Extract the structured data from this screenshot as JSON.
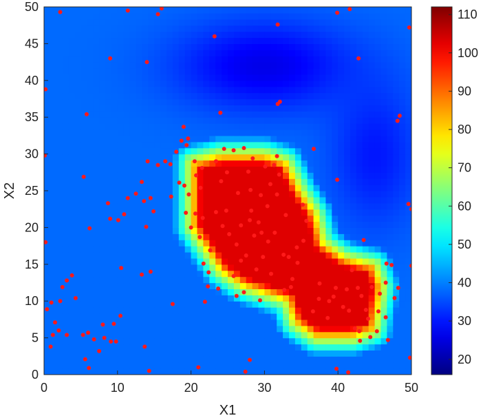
{
  "chart_data": {
    "type": "heatmap",
    "title": "",
    "xlabel": "X1",
    "ylabel": "X2",
    "xlim": [
      0,
      50
    ],
    "ylim": [
      0,
      50
    ],
    "xticks": [
      0,
      10,
      20,
      30,
      40,
      50
    ],
    "yticks": [
      0,
      5,
      10,
      15,
      20,
      25,
      30,
      35,
      40,
      45,
      50
    ],
    "colorbar": {
      "colormap": "jet",
      "range": [
        16,
        112
      ],
      "ticks": [
        20,
        30,
        40,
        50,
        60,
        70,
        80,
        90,
        100,
        110
      ]
    },
    "background_level": 38,
    "hot_regions": [
      {
        "polygon": [
          [
            20,
            29
          ],
          [
            24,
            30
          ],
          [
            30,
            30
          ],
          [
            33,
            29
          ],
          [
            35,
            25
          ],
          [
            37,
            22
          ],
          [
            38,
            18
          ],
          [
            41,
            16
          ],
          [
            45,
            15
          ],
          [
            46,
            12
          ],
          [
            45,
            6
          ],
          [
            42,
            5
          ],
          [
            37,
            5
          ],
          [
            34,
            7
          ],
          [
            33,
            10
          ],
          [
            30,
            11
          ],
          [
            27,
            12
          ],
          [
            24,
            14
          ],
          [
            22,
            17
          ],
          [
            20,
            20
          ]
        ],
        "level": 103
      }
    ],
    "cool_regions": [
      {
        "center": [
          30,
          42
        ],
        "radius": [
          12,
          6
        ],
        "level": 26
      },
      {
        "center": [
          45,
          30
        ],
        "radius": [
          6,
          10
        ],
        "level": 30
      }
    ],
    "point_color": "#ff1a1a",
    "points": [
      [
        0.2,
        38.8
      ],
      [
        0.1,
        29.8
      ],
      [
        0.2,
        18
      ],
      [
        2.2,
        49.3
      ],
      [
        9,
        43
      ],
      [
        11.4,
        49.5
      ],
      [
        15.5,
        49
      ],
      [
        16,
        49.8
      ],
      [
        14,
        42.5
      ],
      [
        5.8,
        35.4
      ],
      [
        23.2,
        46
      ],
      [
        31.8,
        47.6
      ],
      [
        24,
        35.6
      ],
      [
        39.9,
        49.2
      ],
      [
        41.6,
        49.7
      ],
      [
        42.8,
        43
      ],
      [
        49.7,
        47.2
      ],
      [
        48.4,
        35.2
      ],
      [
        48.1,
        34.5
      ],
      [
        49.6,
        23.2
      ],
      [
        50,
        22.5
      ],
      [
        39.9,
        26.5
      ],
      [
        50,
        14.8
      ],
      [
        49.8,
        2.3
      ],
      [
        39.8,
        0.8
      ],
      [
        41.4,
        0.3
      ],
      [
        28,
        2
      ],
      [
        27.4,
        0.4
      ],
      [
        21,
        1
      ],
      [
        14.3,
        0.5
      ],
      [
        6.1,
        0.9
      ],
      [
        13.7,
        3.8
      ],
      [
        5.4,
        26.9
      ],
      [
        6.2,
        19.9
      ],
      [
        8.7,
        23.3
      ],
      [
        9,
        21.2
      ],
      [
        10.1,
        21
      ],
      [
        10.9,
        21.8
      ],
      [
        10.5,
        14.5
      ],
      [
        11.4,
        24
      ],
      [
        12.5,
        24.6
      ],
      [
        13.3,
        26.2
      ],
      [
        13.6,
        23.6
      ],
      [
        14.1,
        29
      ],
      [
        14.5,
        24
      ],
      [
        15.5,
        28.5
      ],
      [
        16.5,
        29
      ],
      [
        17.2,
        28.6
      ],
      [
        17.3,
        24.2
      ],
      [
        18,
        30.3
      ],
      [
        18.7,
        31.8
      ],
      [
        19.4,
        31.2
      ],
      [
        19.6,
        32.1
      ],
      [
        19.1,
        25.7
      ],
      [
        19.7,
        24.5
      ],
      [
        19.3,
        22
      ],
      [
        20,
        20
      ],
      [
        18.4,
        26.1
      ],
      [
        19,
        33.7
      ],
      [
        14.9,
        22.2
      ],
      [
        13.9,
        20.1
      ],
      [
        13.3,
        13.6
      ],
      [
        14.5,
        14
      ],
      [
        17.5,
        9.6
      ],
      [
        0.4,
        8.9
      ],
      [
        1,
        9.8
      ],
      [
        1.5,
        7.1
      ],
      [
        1.2,
        5.4
      ],
      [
        0.9,
        3.8
      ],
      [
        2,
        6
      ],
      [
        2.2,
        10
      ],
      [
        2.5,
        11.9
      ],
      [
        3.1,
        12.8
      ],
      [
        4.3,
        10.4
      ],
      [
        3.8,
        13.5
      ],
      [
        3.1,
        5.4
      ],
      [
        5.3,
        5.4
      ],
      [
        5.6,
        2.1
      ],
      [
        6,
        5.7
      ],
      [
        6.8,
        4.8
      ],
      [
        7.5,
        3.2
      ],
      [
        8,
        6.8
      ],
      [
        9.1,
        4.5
      ],
      [
        9.8,
        4.5
      ],
      [
        9.5,
        6.9
      ],
      [
        10.4,
        8
      ],
      [
        8.2,
        5
      ],
      [
        20.5,
        29
      ],
      [
        20.7,
        27.1
      ],
      [
        21.5,
        28.1
      ],
      [
        21.3,
        25.4
      ],
      [
        20.6,
        21.9
      ],
      [
        21.6,
        21.3
      ],
      [
        21.2,
        18.7
      ],
      [
        21.7,
        15.1
      ],
      [
        22.6,
        16.9
      ],
      [
        22.4,
        13.9
      ],
      [
        22.3,
        12
      ],
      [
        21.9,
        9.9
      ],
      [
        23.7,
        11.7
      ],
      [
        23.4,
        29
      ],
      [
        24.1,
        26.3
      ],
      [
        24.5,
        30.7
      ],
      [
        25.8,
        30.5
      ],
      [
        24.8,
        22.3
      ],
      [
        26.4,
        24.7
      ],
      [
        26.2,
        17.7
      ],
      [
        26.8,
        15.5
      ],
      [
        25.8,
        13.4
      ],
      [
        26.2,
        10.7
      ],
      [
        27.2,
        30.8
      ],
      [
        28.4,
        29.4
      ],
      [
        27.8,
        27.6
      ],
      [
        28.1,
        25.1
      ],
      [
        28,
        21
      ],
      [
        28.6,
        18.9
      ],
      [
        27.5,
        16.2
      ],
      [
        28.9,
        14.3
      ],
      [
        27.2,
        11.2
      ],
      [
        30.1,
        28.3
      ],
      [
        29.5,
        24.4
      ],
      [
        30.4,
        22.9
      ],
      [
        29.2,
        20.7
      ],
      [
        30.5,
        18.1
      ],
      [
        29.8,
        16
      ],
      [
        30.9,
        13.7
      ],
      [
        29.4,
        10.1
      ],
      [
        31.7,
        29.7
      ],
      [
        32,
        27.2
      ],
      [
        31.7,
        24.5
      ],
      [
        32.9,
        21.7
      ],
      [
        31.4,
        19.3
      ],
      [
        32.6,
        16.3
      ],
      [
        33.8,
        13
      ],
      [
        32.7,
        11.5
      ],
      [
        25.2,
        19.1
      ],
      [
        26.8,
        20.3
      ],
      [
        23.4,
        22.1
      ],
      [
        24.3,
        20.2
      ],
      [
        28.2,
        22.3
      ],
      [
        29.6,
        19.3
      ],
      [
        24.9,
        27.5
      ],
      [
        30.8,
        25.9
      ],
      [
        31.8,
        36.8
      ],
      [
        32.1,
        37.1
      ],
      [
        31.3,
        28.5
      ],
      [
        35.2,
        23.1
      ],
      [
        35.7,
        20.9
      ],
      [
        35.3,
        18.2
      ],
      [
        34.4,
        17.3
      ],
      [
        33.3,
        16
      ],
      [
        33.6,
        11.9
      ],
      [
        36.7,
        30.7
      ],
      [
        37.4,
        10.3
      ],
      [
        38.8,
        10
      ],
      [
        38.6,
        7.7
      ],
      [
        39.4,
        10.6
      ],
      [
        40.7,
        9.2
      ],
      [
        41.2,
        11.6
      ],
      [
        41.5,
        8.7
      ],
      [
        42.3,
        6.3
      ],
      [
        42.9,
        5.9
      ],
      [
        42.7,
        11.8
      ],
      [
        43.2,
        10.7
      ],
      [
        43.8,
        8.8
      ],
      [
        43,
        4.6
      ],
      [
        44.1,
        7.6
      ],
      [
        44.6,
        11.9
      ],
      [
        44.4,
        5.1
      ],
      [
        45.3,
        5.9
      ],
      [
        45.5,
        8.6
      ],
      [
        45.7,
        11
      ],
      [
        46.5,
        7.8
      ],
      [
        46.5,
        12.5
      ],
      [
        47.7,
        10.4
      ],
      [
        47.3,
        14.9
      ],
      [
        46.8,
        4.7
      ],
      [
        48.2,
        11.8
      ],
      [
        46.6,
        15.1
      ],
      [
        43.5,
        18.3
      ],
      [
        41.9,
        14.2
      ],
      [
        39.7,
        11.8
      ],
      [
        37.5,
        12.4
      ],
      [
        34.5,
        15.2
      ],
      [
        36.6,
        8.6
      ]
    ]
  }
}
